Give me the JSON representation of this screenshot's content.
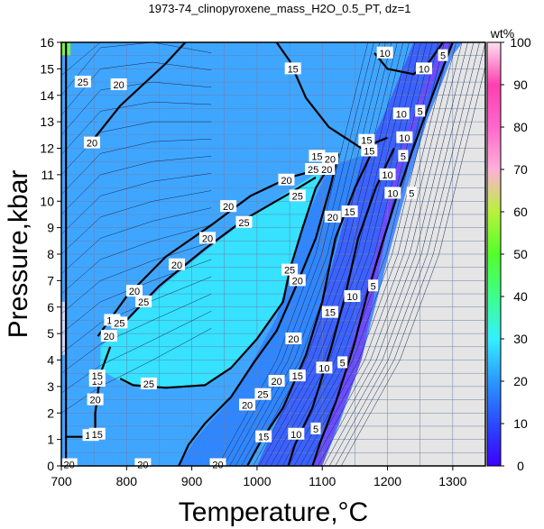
{
  "chart_data": {
    "type": "heatmap",
    "title": "1973-74_clinopyroxene_mass_H2O_0.5_PT, dz=1",
    "xlabel": "Temperature,°C",
    "ylabel": "Pressure,kbar",
    "xlim": [
      700,
      1350
    ],
    "ylim": [
      0,
      16
    ],
    "x_ticks": [
      700,
      800,
      900,
      1000,
      1100,
      1200,
      1300
    ],
    "y_ticks": [
      0,
      1,
      2,
      3,
      4,
      5,
      6,
      7,
      8,
      9,
      10,
      11,
      12,
      13,
      14,
      15,
      16
    ],
    "grid": true,
    "colorbar": {
      "label": "wt%",
      "range": [
        0,
        100
      ],
      "ticks": [
        0,
        10,
        20,
        30,
        40,
        50,
        60,
        70,
        80,
        90,
        100
      ],
      "stops": [
        "#3b00ff",
        "#2a4aff",
        "#2a98ff",
        "#33f0ff",
        "#3cff8a",
        "#52ff2a",
        "#b8f23a",
        "#ffb0d8",
        "#ff66cc",
        "#ff3fb0",
        "#ffe0f0"
      ]
    },
    "contour_labels": [
      {
        "T": 712,
        "P": 0.05,
        "value": "20"
      },
      {
        "T": 825,
        "P": 0.05,
        "value": "20"
      },
      {
        "T": 745,
        "P": 1.15,
        "value": "15"
      },
      {
        "T": 755,
        "P": 1.2,
        "value": "15"
      },
      {
        "T": 752,
        "P": 2.5,
        "value": "20"
      },
      {
        "T": 755,
        "P": 3.2,
        "value": "15"
      },
      {
        "T": 755,
        "P": 3.4,
        "value": "15"
      },
      {
        "T": 773,
        "P": 4.9,
        "value": "20"
      },
      {
        "T": 778,
        "P": 5.5,
        "value": "15"
      },
      {
        "T": 789,
        "P": 5.4,
        "value": "25"
      },
      {
        "T": 812,
        "P": 6.6,
        "value": "20"
      },
      {
        "T": 826,
        "P": 6.2,
        "value": "25"
      },
      {
        "T": 834,
        "P": 3.1,
        "value": "25"
      },
      {
        "T": 877,
        "P": 7.6,
        "value": "20"
      },
      {
        "T": 924,
        "P": 8.6,
        "value": "20"
      },
      {
        "T": 956,
        "P": 9.8,
        "value": "20"
      },
      {
        "T": 980,
        "P": 9.2,
        "value": "25"
      },
      {
        "T": 1045,
        "P": 10.8,
        "value": "20"
      },
      {
        "T": 1062,
        "P": 10.2,
        "value": "25"
      },
      {
        "T": 1086,
        "P": 11.2,
        "value": "25"
      },
      {
        "T": 1107,
        "P": 11.2,
        "value": "20"
      },
      {
        "T": 1112,
        "P": 11.6,
        "value": "20"
      },
      {
        "T": 1050,
        "P": 7.4,
        "value": "25"
      },
      {
        "T": 1062,
        "P": 7.0,
        "value": "20"
      },
      {
        "T": 1116,
        "P": 9.4,
        "value": "20"
      },
      {
        "T": 1142,
        "P": 9.6,
        "value": "15"
      },
      {
        "T": 1056,
        "P": 4.8,
        "value": "20"
      },
      {
        "T": 1112,
        "P": 5.8,
        "value": "15"
      },
      {
        "T": 1146,
        "P": 6.4,
        "value": "10"
      },
      {
        "T": 1178,
        "P": 6.8,
        "value": "5"
      },
      {
        "T": 1030,
        "P": 3.2,
        "value": "20"
      },
      {
        "T": 1062,
        "P": 3.4,
        "value": "15"
      },
      {
        "T": 1103,
        "P": 3.7,
        "value": "10"
      },
      {
        "T": 1131,
        "P": 3.9,
        "value": "5"
      },
      {
        "T": 1009,
        "P": 2.7,
        "value": "25"
      },
      {
        "T": 985,
        "P": 2.3,
        "value": "20"
      },
      {
        "T": 1010,
        "P": 1.1,
        "value": "15"
      },
      {
        "T": 1060,
        "P": 1.2,
        "value": "10"
      },
      {
        "T": 1090,
        "P": 1.4,
        "value": "5"
      },
      {
        "T": 940,
        "P": 0.05,
        "value": "20"
      },
      {
        "T": 1168,
        "P": 12.3,
        "value": "15"
      },
      {
        "T": 1092,
        "P": 11.7,
        "value": "15"
      },
      {
        "T": 1172,
        "P": 11.9,
        "value": "15"
      },
      {
        "T": 1200,
        "P": 11.0,
        "value": "10"
      },
      {
        "T": 1208,
        "P": 10.3,
        "value": "10"
      },
      {
        "T": 1237,
        "P": 10.3,
        "value": "5"
      },
      {
        "T": 1221,
        "P": 13.3,
        "value": "10"
      },
      {
        "T": 1250,
        "P": 13.4,
        "value": "5"
      },
      {
        "T": 1196,
        "P": 15.6,
        "value": "10"
      },
      {
        "T": 1256,
        "P": 15.0,
        "value": "10"
      },
      {
        "T": 1285,
        "P": 15.5,
        "value": "5"
      },
      {
        "T": 1055,
        "P": 15.0,
        "value": "15"
      },
      {
        "T": 733,
        "P": 14.5,
        "value": "25"
      },
      {
        "T": 788,
        "P": 14.4,
        "value": "20"
      },
      {
        "T": 747,
        "P": 12.2,
        "value": "20"
      },
      {
        "T": 1226,
        "P": 12.4,
        "value": "10"
      },
      {
        "T": 1224,
        "P": 11.7,
        "value": "5"
      }
    ],
    "bold_contours": [
      {
        "value": "20",
        "points": [
          [
            745,
            12.2
          ],
          [
            790,
            13.6
          ],
          [
            860,
            15.2
          ],
          [
            890,
            16
          ]
        ]
      },
      {
        "value": "15",
        "points": [
          [
            1030,
            16
          ],
          [
            1050,
            15.3
          ],
          [
            1075,
            13.9
          ],
          [
            1110,
            12.8
          ],
          [
            1160,
            12.0
          ],
          [
            1200,
            12.4
          ]
        ]
      },
      {
        "value": "10",
        "points": [
          [
            1180,
            15.6
          ],
          [
            1200,
            15.0
          ],
          [
            1240,
            14.8
          ],
          [
            1262,
            15.2
          ],
          [
            1285,
            16
          ]
        ]
      },
      {
        "value": "20",
        "points": [
          [
            756,
            4.9
          ],
          [
            800,
            6.4
          ],
          [
            860,
            7.9
          ],
          [
            930,
            9.1
          ],
          [
            990,
            10.2
          ],
          [
            1050,
            10.9
          ],
          [
            1110,
            11.3
          ]
        ]
      },
      {
        "value": "25",
        "points": [
          [
            800,
            5.5
          ],
          [
            850,
            6.8
          ],
          [
            920,
            8.2
          ],
          [
            980,
            9.3
          ],
          [
            1050,
            10.3
          ],
          [
            1090,
            10.9
          ]
        ]
      },
      {
        "value": "25",
        "points": [
          [
            1110,
            11.3
          ],
          [
            1090,
            10.5
          ],
          [
            1070,
            9.0
          ],
          [
            1050,
            7.4
          ],
          [
            1040,
            6.2
          ],
          [
            1000,
            4.8
          ],
          [
            960,
            3.7
          ],
          [
            920,
            3.05
          ],
          [
            860,
            2.95
          ],
          [
            810,
            3.05
          ],
          [
            790,
            3.3
          ]
        ]
      },
      {
        "value": "20",
        "points": [
          [
            1125,
            11.8
          ],
          [
            1112,
            10.5
          ],
          [
            1090,
            8.6
          ],
          [
            1060,
            6.8
          ],
          [
            1030,
            5.1
          ],
          [
            995,
            3.9
          ],
          [
            960,
            2.6
          ],
          [
            920,
            1.6
          ],
          [
            895,
            0.8
          ],
          [
            880,
            0.0
          ]
        ]
      },
      {
        "value": "15",
        "points": [
          [
            1175,
            11.8
          ],
          [
            1150,
            10.5
          ],
          [
            1120,
            8.6
          ],
          [
            1100,
            6.2
          ],
          [
            1075,
            4.2
          ],
          [
            1040,
            2.2
          ],
          [
            1005,
            0.9
          ],
          [
            985,
            0.0
          ]
        ]
      },
      {
        "value": "10",
        "points": [
          [
            1210,
            12.0
          ],
          [
            1182,
            10.5
          ],
          [
            1155,
            8.6
          ],
          [
            1135,
            6.4
          ],
          [
            1113,
            4.4
          ],
          [
            1085,
            2.2
          ],
          [
            1058,
            0.8
          ],
          [
            1048,
            0.0
          ]
        ]
      },
      {
        "value": "5",
        "points": [
          [
            1300,
            16
          ],
          [
            1272,
            14.2
          ],
          [
            1238,
            11.9
          ],
          [
            1212,
            10.0
          ],
          [
            1188,
            8.1
          ],
          [
            1168,
            6.4
          ],
          [
            1148,
            4.5
          ],
          [
            1122,
            2.5
          ],
          [
            1097,
            0.9
          ],
          [
            1085,
            0.0
          ]
        ]
      },
      {
        "value": "15",
        "points": [
          [
            707,
            1.1
          ],
          [
            752,
            1.1
          ],
          [
            752,
            2.0
          ],
          [
            760,
            3.5
          ],
          [
            775,
            4.5
          ]
        ]
      },
      {
        "value": "20",
        "points": [
          [
            707,
            16
          ],
          [
            707,
            0
          ]
        ]
      }
    ]
  }
}
